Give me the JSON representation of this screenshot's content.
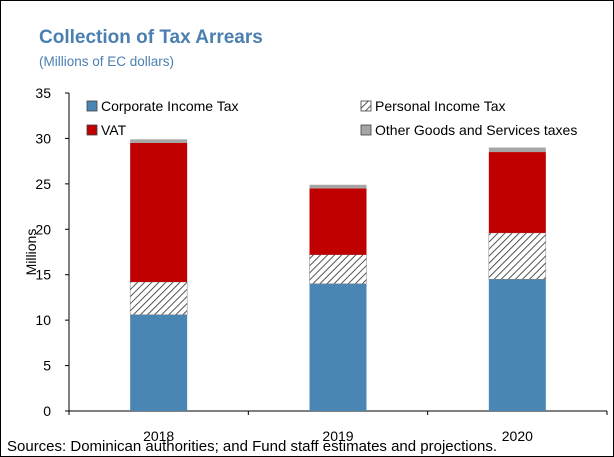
{
  "chart_data": {
    "type": "bar",
    "stacked": true,
    "title": "Collection of Tax Arrears",
    "subtitle": "(Millions of EC dollars)",
    "ylabel": "Millions",
    "xlabel": "",
    "ylim": [
      0,
      35
    ],
    "yticks": [
      0,
      5,
      10,
      15,
      20,
      25,
      30,
      35
    ],
    "categories": [
      "2018",
      "2019",
      "2020"
    ],
    "grid": false,
    "legend_position": "top",
    "series": [
      {
        "name": "Corporate Income Tax",
        "values": [
          10.6,
          14.0,
          14.5
        ],
        "color": "#4a86b4",
        "pattern": "solid"
      },
      {
        "name": "Personal Income Tax",
        "values": [
          3.6,
          3.2,
          5.1
        ],
        "color": "#ffffff",
        "pattern": "hatch"
      },
      {
        "name": "VAT",
        "values": [
          15.3,
          7.3,
          8.9
        ],
        "color": "#c00000",
        "pattern": "solid"
      },
      {
        "name": "Other Goods and Services taxes",
        "values": [
          0.4,
          0.4,
          0.5
        ],
        "color": "#a6a6a6",
        "pattern": "solid"
      }
    ],
    "source_note": "Sources: Dominican authorities; and Fund staff estimates and projections."
  }
}
